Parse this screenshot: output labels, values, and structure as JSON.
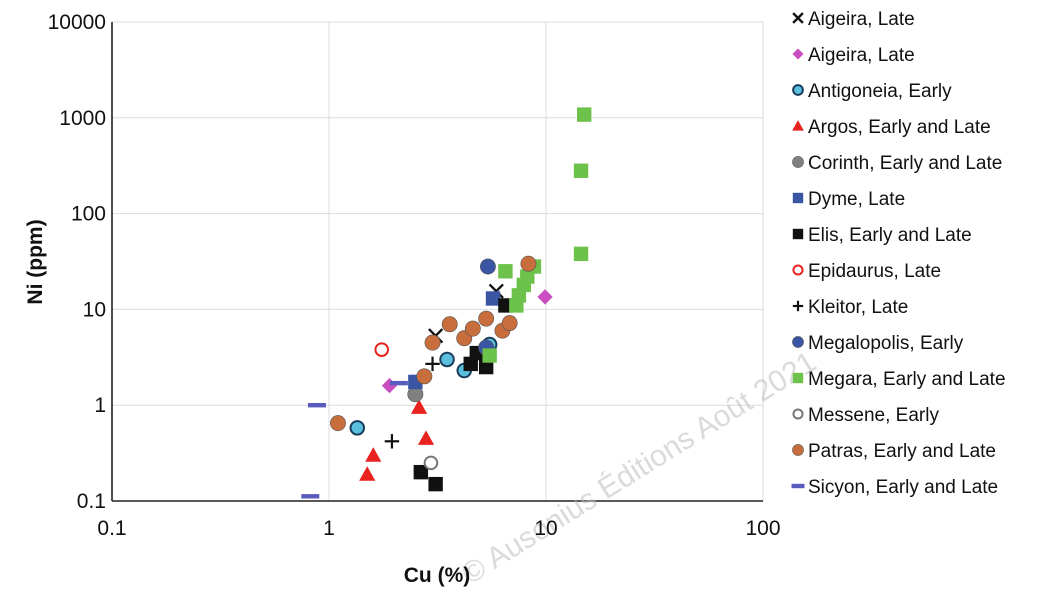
{
  "watermark_text": "© Ausonius Éditions Août 2021",
  "chart_data": {
    "type": "scatter",
    "title": "",
    "xlabel": "Cu (%)",
    "ylabel": "Ni (ppm)",
    "xscale": "log",
    "yscale": "log",
    "xlim": [
      0.1,
      100
    ],
    "ylim": [
      0.1,
      10000
    ],
    "xticks": [
      0.1,
      1,
      10,
      100
    ],
    "xtick_labels": [
      "0.1",
      "1",
      "10",
      "100"
    ],
    "yticks": [
      0.1,
      1,
      10,
      100,
      1000,
      10000
    ],
    "ytick_labels": [
      "0.1",
      "1",
      "10",
      "100",
      "1000",
      "10000"
    ],
    "grid": true,
    "legend_position": "right",
    "series": [
      {
        "name": "Aigeira, Late",
        "marker": "x",
        "color": "#111111",
        "points": [
          [
            3.1,
            5.3
          ],
          [
            5.9,
            15.5
          ]
        ]
      },
      {
        "name": "Aigeira, Late",
        "marker": "diamond",
        "color": "#c94fc0",
        "points": [
          [
            1.9,
            1.6
          ],
          [
            9.9,
            13.5
          ]
        ]
      },
      {
        "name": "Antigoneia, Early",
        "marker": "circle-ring",
        "color": "#5bc0de",
        "points": [
          [
            1.35,
            0.58
          ],
          [
            3.5,
            3.0
          ],
          [
            4.2,
            2.3
          ],
          [
            5.5,
            4.3
          ]
        ]
      },
      {
        "name": "Argos, Early and Late",
        "marker": "triangle",
        "color": "#e8221e",
        "points": [
          [
            1.5,
            0.19
          ],
          [
            1.6,
            0.3
          ],
          [
            2.8,
            0.45
          ],
          [
            2.6,
            0.95
          ]
        ]
      },
      {
        "name": "Corinth, Early and Late",
        "marker": "circle",
        "color": "#808080",
        "points": [
          [
            2.5,
            1.3
          ],
          [
            5.2,
            3.5
          ]
        ]
      },
      {
        "name": "Dyme, Late",
        "marker": "square",
        "color": "#3a55a4",
        "points": [
          [
            2.5,
            1.75
          ],
          [
            5.7,
            13.0
          ]
        ]
      },
      {
        "name": "Elis, Early and Late",
        "marker": "square",
        "color": "#111111",
        "points": [
          [
            2.65,
            0.2
          ],
          [
            3.1,
            0.15
          ],
          [
            4.5,
            2.7
          ],
          [
            5.3,
            2.5
          ],
          [
            4.8,
            3.5
          ],
          [
            6.5,
            11.0
          ]
        ]
      },
      {
        "name": "Epidaurus, Late",
        "marker": "circle-open",
        "color": "#e8221e",
        "points": [
          [
            1.75,
            3.8
          ]
        ]
      },
      {
        "name": "Kleitor, Late",
        "marker": "plus",
        "color": "#111111",
        "points": [
          [
            1.95,
            0.42
          ],
          [
            3.0,
            2.7
          ]
        ]
      },
      {
        "name": "Megalopolis, Early",
        "marker": "circle",
        "color": "#3a55a4",
        "points": [
          [
            5.4,
            28.0
          ],
          [
            5.3,
            4.0
          ]
        ]
      },
      {
        "name": "Megara, Early and Late",
        "marker": "square",
        "color": "#6cc24a",
        "points": [
          [
            15.0,
            1080
          ],
          [
            14.5,
            280
          ],
          [
            14.5,
            38
          ],
          [
            8.8,
            28
          ],
          [
            8.2,
            22
          ],
          [
            7.9,
            18
          ],
          [
            7.5,
            14
          ],
          [
            6.5,
            25
          ],
          [
            7.3,
            11
          ],
          [
            5.5,
            3.3
          ]
        ]
      },
      {
        "name": "Messene, Early",
        "marker": "circle-open",
        "color": "#777777",
        "points": [
          [
            2.95,
            0.25
          ]
        ]
      },
      {
        "name": "Patras, Early and Late",
        "marker": "circle",
        "color": "#c86e3c",
        "points": [
          [
            1.1,
            0.65
          ],
          [
            2.75,
            2.0
          ],
          [
            3.0,
            4.5
          ],
          [
            3.6,
            7.0
          ],
          [
            4.2,
            5.0
          ],
          [
            4.6,
            6.3
          ],
          [
            5.3,
            8.0
          ],
          [
            6.3,
            6.0
          ],
          [
            6.8,
            7.2
          ],
          [
            8.3,
            30.0
          ]
        ]
      },
      {
        "name": "Sicyon, Early and Late",
        "marker": "dash",
        "color": "#5a5bbf",
        "points": [
          [
            0.82,
            0.112
          ],
          [
            0.88,
            1.0
          ],
          [
            2.1,
            1.7
          ]
        ]
      }
    ]
  }
}
